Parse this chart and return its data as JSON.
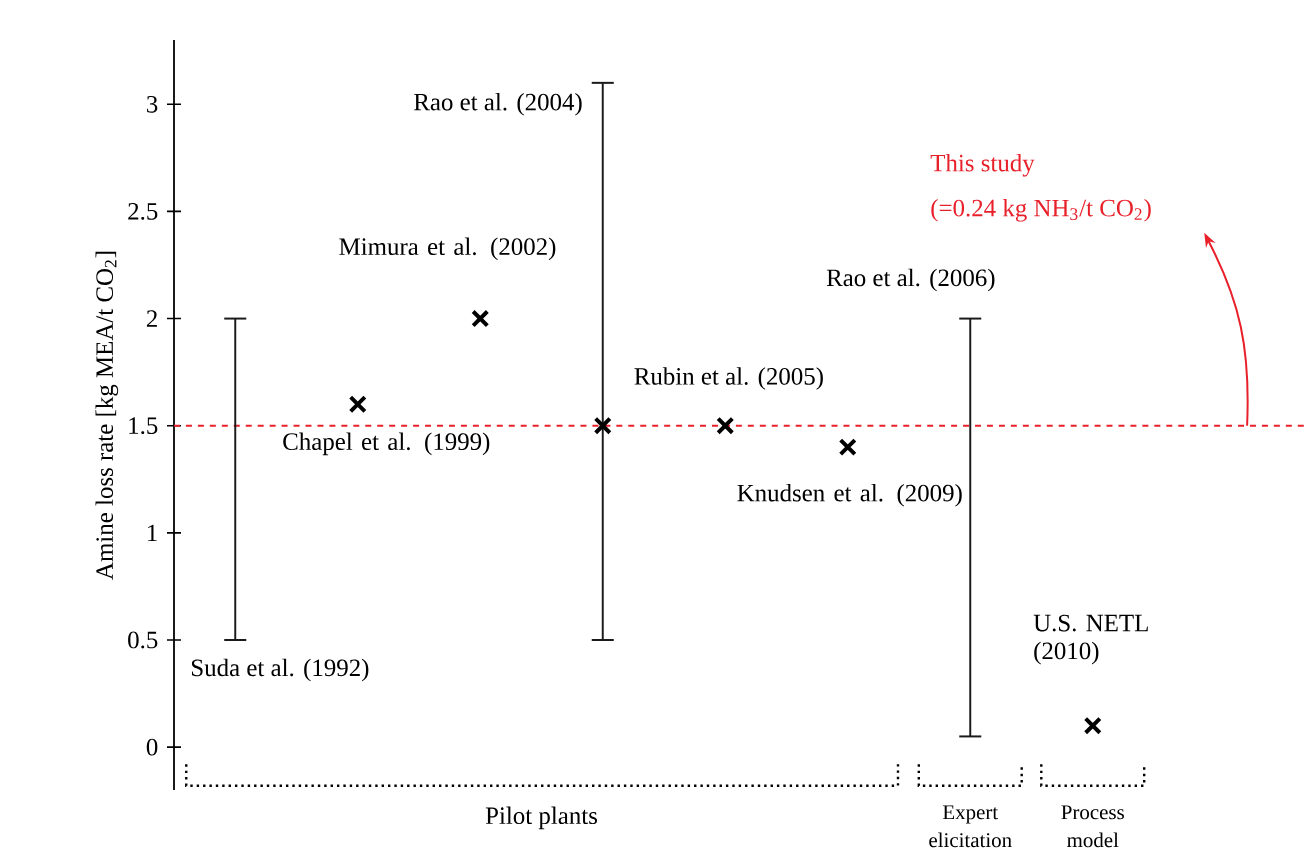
{
  "chart_data": {
    "type": "scatter",
    "ylabel": "Amine loss rate [kg MEA/t CO$_{2}$]",
    "categories": [
      null,
      null,
      null,
      null,
      null,
      null,
      null,
      null
    ],
    "ylim": [
      -0.2,
      3.3
    ],
    "yticks": [
      0,
      0.5,
      1,
      1.5,
      2,
      2.5,
      3
    ],
    "series": [
      {
        "type": "bar",
        "color": "#1a1a1a",
        "base": [
          0.5,
          null,
          null,
          0.5,
          null,
          null,
          0.05,
          null
        ],
        "values": [
          1.5,
          null,
          null,
          2.6,
          null,
          null,
          1.95,
          null
        ]
      },
      {
        "color": "#000000",
        "marker": "cross",
        "values": [
          null,
          1.6,
          2.0,
          1.5,
          1.5,
          1.4,
          null,
          0.1
        ]
      }
    ],
    "ref_lines": [
      {
        "axis": "y",
        "value": 1.5,
        "label": "This study",
        "color": "#e8202a",
        "line_style": "dashed"
      }
    ],
    "annotations": [
      "Suda et al. (1992)",
      "Chapel et al. (1999)",
      "Mimura et al. (2002)",
      "Rao et al. (2004)",
      "Rubin et al. (2005)",
      "Knudsen et al. (2009)",
      "Rao et al. (2006)",
      "U.S. NETL (2010)",
      "Pilot plants",
      "Expert elicitation",
      "Process model",
      "(=0.24 kg NH$_{3}$/t CO$_{2}$)"
    ],
    "grid": false
  }
}
